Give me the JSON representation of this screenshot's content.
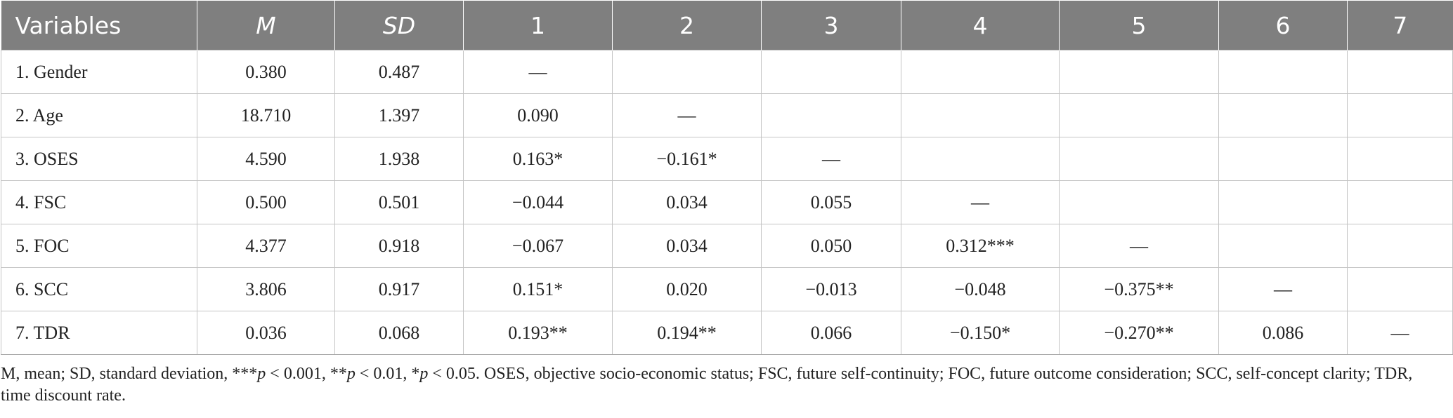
{
  "table": {
    "headers": [
      "Variables",
      "M",
      "SD",
      "1",
      "2",
      "3",
      "4",
      "5",
      "6",
      "7"
    ],
    "rows": [
      [
        "1. Gender",
        "0.380",
        "0.487",
        "—",
        "",
        "",
        "",
        "",
        "",
        ""
      ],
      [
        "2. Age",
        "18.710",
        "1.397",
        "0.090",
        "—",
        "",
        "",
        "",
        "",
        ""
      ],
      [
        "3. OSES",
        "4.590",
        "1.938",
        "0.163*",
        "−0.161*",
        "—",
        "",
        "",
        "",
        ""
      ],
      [
        "4. FSC",
        "0.500",
        "0.501",
        "−0.044",
        "0.034",
        "0.055",
        "—",
        "",
        "",
        ""
      ],
      [
        "5. FOC",
        "4.377",
        "0.918",
        "−0.067",
        "0.034",
        "0.050",
        "0.312***",
        "—",
        "",
        ""
      ],
      [
        "6. SCC",
        "3.806",
        "0.917",
        "0.151*",
        "0.020",
        "−0.013",
        "−0.048",
        "−0.375**",
        "—",
        ""
      ],
      [
        "7. TDR",
        "0.036",
        "0.068",
        "0.193**",
        "0.194**",
        "0.066",
        "−0.150*",
        "−0.270**",
        "0.086",
        "—"
      ]
    ]
  },
  "note": {
    "part1": "M, mean; SD, standard deviation, ***",
    "p1": "p",
    "part2": " < 0.001, **",
    "p2": "p",
    "part3": " < 0.01, *",
    "p3": "p",
    "part4": " < 0.05. OSES, objective socio-economic status; FSC, future self-continuity; FOC, future outcome consideration; SCC, self-concept clarity; TDR, time discount rate."
  }
}
